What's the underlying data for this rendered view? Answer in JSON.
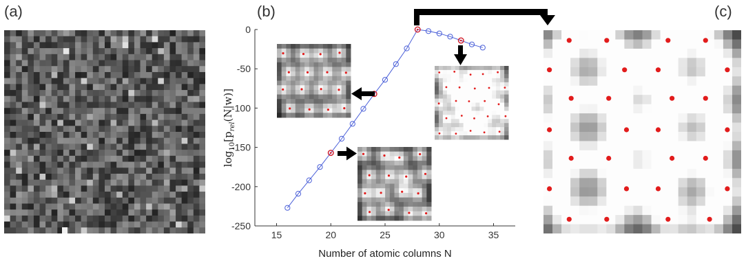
{
  "panels": {
    "a_label": "(a)",
    "b_label": "(b)",
    "c_label": "(c)"
  },
  "chart_data": {
    "type": "line",
    "title": "",
    "xlabel": "Number of atomic columns N",
    "ylabel": "log10[prel(N|w)]",
    "ylabel_parts": {
      "main": "log",
      "sub": "10",
      "rest": "[p",
      "rsub": "rel",
      "tail": "(N|w)]"
    },
    "xlim": [
      13,
      37
    ],
    "ylim": [
      -250,
      0
    ],
    "xticks": [
      15,
      20,
      25,
      30,
      35
    ],
    "yticks": [
      0,
      -50,
      -100,
      -150,
      -200,
      -250
    ],
    "grid": false,
    "series": [
      {
        "marker": "circle",
        "color": "#4a5fd8",
        "x": [
          16,
          17,
          18,
          19,
          20,
          21,
          22,
          23,
          24,
          25,
          26,
          27,
          28,
          29,
          30,
          31,
          32,
          33,
          34
        ],
        "y": [
          -227,
          -209,
          -192,
          -175,
          -157,
          -139,
          -120,
          -101,
          -82,
          -64,
          -44,
          -24,
          0,
          -2,
          -5,
          -9,
          -14,
          -19,
          -23
        ]
      }
    ],
    "highlighted_points": [
      {
        "x": 20,
        "y": -157,
        "color": "#d8202a"
      },
      {
        "x": 24,
        "y": -82,
        "color": "#d8202a"
      },
      {
        "x": 28,
        "y": 0,
        "color": "#d8202a"
      },
      {
        "x": 32,
        "y": -14,
        "color": "#d8202a"
      }
    ]
  },
  "colors": {
    "line": "#4a5fd8",
    "highlight": "#d8202a",
    "atom_dot": "#e21c1c",
    "arrow": "#000000"
  }
}
